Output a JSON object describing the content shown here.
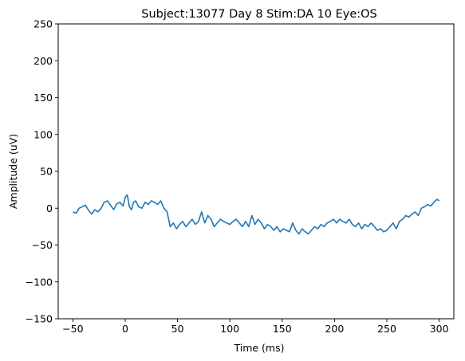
{
  "chart_data": {
    "type": "line",
    "title": "Subject:13077 Day 8 Stim:DA 10 Eye:OS",
    "xlabel": "Time (ms)",
    "ylabel": "Amplitude (uV)",
    "xlim": [
      -64,
      314
    ],
    "ylim": [
      -150,
      250
    ],
    "xticks": [
      -50,
      0,
      50,
      100,
      150,
      200,
      250,
      300
    ],
    "yticks": [
      -150,
      -100,
      -50,
      0,
      50,
      100,
      150,
      200,
      250
    ],
    "grid": false,
    "legend": "none",
    "series": [
      {
        "color": "#1f77b4",
        "x": [
          -50,
          -47,
          -44,
          -41,
          -38,
          -35,
          -32,
          -29,
          -26,
          -23,
          -20,
          -17,
          -14,
          -11,
          -8,
          -5,
          -2,
          0,
          2,
          4,
          6,
          8,
          10,
          13,
          16,
          19,
          22,
          25,
          28,
          31,
          34,
          37,
          40,
          43,
          46,
          49,
          52,
          55,
          58,
          61,
          64,
          67,
          70,
          73,
          76,
          79,
          82,
          85,
          88,
          91,
          94,
          97,
          100,
          103,
          106,
          109,
          112,
          115,
          118,
          121,
          124,
          127,
          130,
          133,
          136,
          139,
          142,
          145,
          148,
          151,
          154,
          157,
          160,
          163,
          166,
          169,
          172,
          175,
          178,
          181,
          184,
          187,
          190,
          193,
          196,
          199,
          202,
          205,
          208,
          211,
          214,
          217,
          220,
          223,
          226,
          229,
          232,
          235,
          238,
          241,
          244,
          247,
          250,
          253,
          256,
          259,
          262,
          265,
          268,
          271,
          274,
          277,
          280,
          283,
          286,
          289,
          292,
          295,
          298,
          300
        ],
        "y": [
          -5,
          -7,
          0,
          2,
          4,
          -3,
          -8,
          -2,
          -5,
          0,
          8,
          10,
          4,
          -2,
          6,
          8,
          3,
          15,
          18,
          2,
          -2,
          8,
          10,
          2,
          0,
          8,
          5,
          10,
          8,
          5,
          10,
          0,
          -5,
          -25,
          -20,
          -28,
          -22,
          -18,
          -25,
          -20,
          -15,
          -22,
          -18,
          -5,
          -20,
          -10,
          -15,
          -25,
          -20,
          -15,
          -18,
          -20,
          -22,
          -18,
          -15,
          -20,
          -25,
          -18,
          -25,
          -10,
          -22,
          -15,
          -20,
          -28,
          -22,
          -25,
          -30,
          -25,
          -32,
          -28,
          -30,
          -32,
          -20,
          -30,
          -35,
          -28,
          -32,
          -35,
          -30,
          -25,
          -28,
          -22,
          -25,
          -20,
          -18,
          -15,
          -20,
          -15,
          -18,
          -20,
          -15,
          -22,
          -25,
          -20,
          -28,
          -22,
          -25,
          -20,
          -25,
          -30,
          -28,
          -32,
          -30,
          -25,
          -20,
          -28,
          -18,
          -15,
          -10,
          -12,
          -8,
          -5,
          -10,
          0,
          2,
          5,
          3,
          8,
          12,
          10
        ]
      }
    ]
  }
}
